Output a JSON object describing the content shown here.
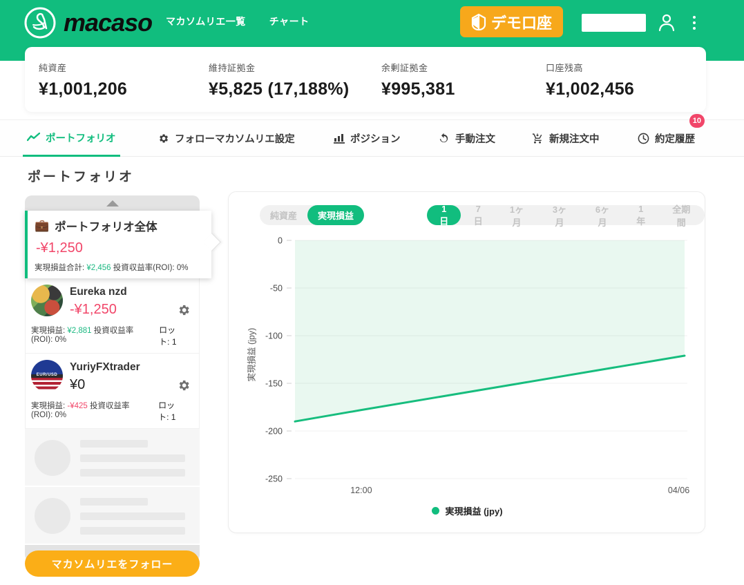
{
  "header": {
    "logo_text": "macaso",
    "nav": [
      {
        "label": "マカソムリエ一覧"
      },
      {
        "label": "チャート"
      }
    ],
    "demo_button_label": "デモ口座"
  },
  "stats": [
    {
      "label": "純資産",
      "value": "¥1,001,206"
    },
    {
      "label": "維持証拠金",
      "value": "¥5,825 (17,188%)"
    },
    {
      "label": "余剰証拠金",
      "value": "¥995,381"
    },
    {
      "label": "口座残高",
      "value": "¥1,002,456"
    }
  ],
  "tabs": [
    {
      "label": "ポートフォリオ",
      "icon": "line-chart-icon",
      "active": true
    },
    {
      "label": "フォローマカソムリエ設定",
      "icon": "gear-icon",
      "active": false
    },
    {
      "label": "ポジション",
      "icon": "bar-chart-icon",
      "active": false
    },
    {
      "label": "手動注文",
      "icon": "refresh-icon",
      "active": false
    },
    {
      "label": "新規注文中",
      "icon": "cart-icon",
      "active": false
    },
    {
      "label": "約定履歴",
      "icon": "clock-icon",
      "active": false,
      "badge": "10"
    }
  ],
  "page_title": "ポートフォリオ",
  "portfolio": {
    "summary": {
      "title": "ポートフォリオ全体",
      "value": "-¥1,250",
      "realized_label": "実現損益合計:",
      "realized_value": "¥2,456",
      "roi_label": "投資収益率(ROI):",
      "roi_value": "0%"
    },
    "items": [
      {
        "name": "Eureka nzd",
        "value": "-¥1,250",
        "realized_label": "実現損益:",
        "realized_value": "¥2,881",
        "roi_label": "投資収益率(ROI):",
        "roi_value": "0%",
        "lot_label": "ロット:",
        "lot_value": "1"
      },
      {
        "name": "YuriyFXtrader",
        "value": "¥0",
        "avatar_pair": "EUR/USD",
        "realized_label": "実現損益:",
        "realized_value": "-¥425",
        "roi_label": "投資収益率(ROI):",
        "roi_value": "0%",
        "lot_label": "ロット:",
        "lot_value": "1"
      }
    ],
    "follow_button": "マカソムリエをフォロー"
  },
  "chart_panel": {
    "metric_toggle": [
      {
        "label": "純資産",
        "active": false
      },
      {
        "label": "実現損益",
        "active": true
      }
    ],
    "range_toggle": [
      {
        "label": "1日",
        "active": true
      },
      {
        "label": "7日",
        "active": false
      },
      {
        "label": "1ヶ月",
        "active": false
      },
      {
        "label": "3ヶ月",
        "active": false
      },
      {
        "label": "6ヶ月",
        "active": false
      },
      {
        "label": "1年",
        "active": false
      },
      {
        "label": "全期間",
        "active": false
      }
    ]
  },
  "chart_data": {
    "type": "area",
    "ylabel": "実現損益 (jpy)",
    "legend_label": "実現損益 (jpy)",
    "legend_position": "bottom-center",
    "ylim": [
      -250,
      0
    ],
    "yticks": [
      0,
      -50,
      -100,
      -150,
      -200,
      -250
    ],
    "grid": true,
    "xticks": [
      {
        "label": "12:00",
        "pos": 0.17
      },
      {
        "label": "04/06",
        "pos": 0.985
      }
    ],
    "series": [
      {
        "name": "実現損益 (jpy)",
        "points": [
          {
            "t": 0.0,
            "v": -190
          },
          {
            "t": 0.17,
            "v": -178
          },
          {
            "t": 1.0,
            "v": -121
          }
        ]
      }
    ],
    "fill": "between line and zero",
    "line_color": "#17bd7e",
    "fill_color": "#e9f8f0"
  },
  "colors": {
    "brand_green": "#11bd7e",
    "demo_orange": "#f7a81b",
    "follow_yellow": "#fbae17",
    "negative_red": "#f14669",
    "positive_green": "#1cb982",
    "badge_red": "#f14669"
  }
}
